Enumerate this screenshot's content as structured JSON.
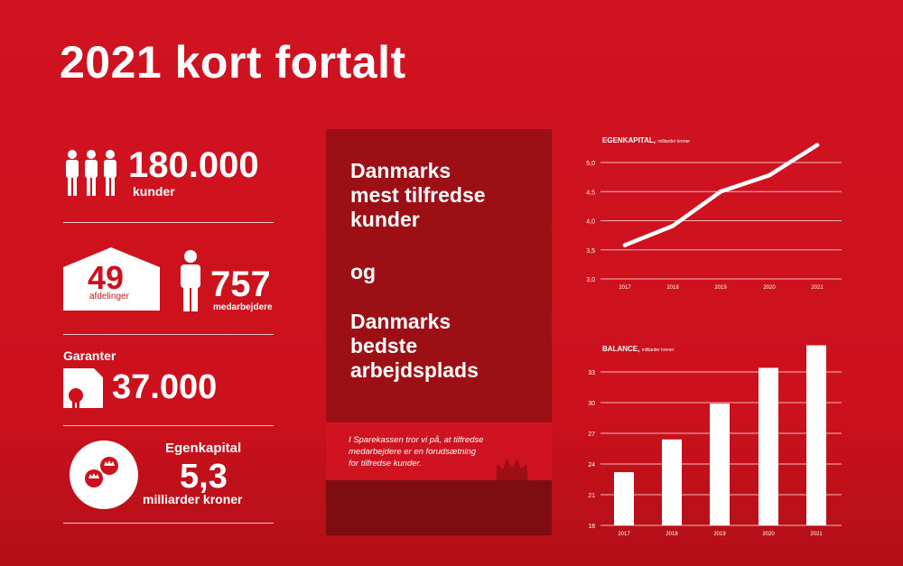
{
  "title": "2021 kort fortalt",
  "stats": {
    "customers": {
      "value": "180.000",
      "label": "kunder"
    },
    "branches": {
      "value": "49",
      "label": "afdelinger"
    },
    "employees": {
      "value": "757",
      "label": "medarbejdere"
    },
    "guarantors": {
      "label": "Garanter",
      "value": "37.000"
    },
    "equity": {
      "label": "Egenkapital",
      "value": "5,3",
      "unit": "milliarder kroner"
    }
  },
  "panel": {
    "line1": "Danmarks",
    "line2": "mest tilfredse",
    "line3": "kunder",
    "line4": "og",
    "line5": "Danmarks",
    "line6": "bedste",
    "line7": "arbejdsplads",
    "note1": "I Sparekassen tror vi på, at tilfredse",
    "note2": "medarbejdere er en forudsætning",
    "note3": "for tilfredse kunder."
  },
  "colors": {
    "background": "#cc111d",
    "panel": "#9c1015",
    "panel_dark": "#7d0d10",
    "mark": "#ffffff"
  },
  "icons": [
    "people-icon",
    "house-icon",
    "person-icon",
    "certificate-icon",
    "coins-icon",
    "crown-icon"
  ],
  "chart_data": [
    {
      "type": "line",
      "title": "EGENKAPITAL,",
      "subtitle": "milliarder kroner",
      "x": [
        "2017",
        "2018",
        "2019",
        "2020",
        "2021"
      ],
      "values": [
        3.58,
        3.91,
        4.5,
        4.78,
        5.3
      ],
      "yticks": [
        "3,0",
        "3,5",
        "4,0",
        "4,5",
        "5,0"
      ],
      "ytick_values": [
        3.0,
        3.5,
        4.0,
        4.5,
        5.0
      ],
      "ylim": [
        3.0,
        5.5
      ],
      "grid": true
    },
    {
      "type": "bar",
      "title": "BALANCE,",
      "subtitle": "milliarder kroner",
      "categories": [
        "2017",
        "2018",
        "2019",
        "2020",
        "2021"
      ],
      "values": [
        23.2,
        26.4,
        29.9,
        33.4,
        35.6
      ],
      "yticks": [
        "18",
        "21",
        "24",
        "27",
        "30",
        "33"
      ],
      "ytick_values": [
        18,
        21,
        24,
        27,
        30,
        33
      ],
      "ylim": [
        18,
        36
      ],
      "grid": true
    }
  ]
}
